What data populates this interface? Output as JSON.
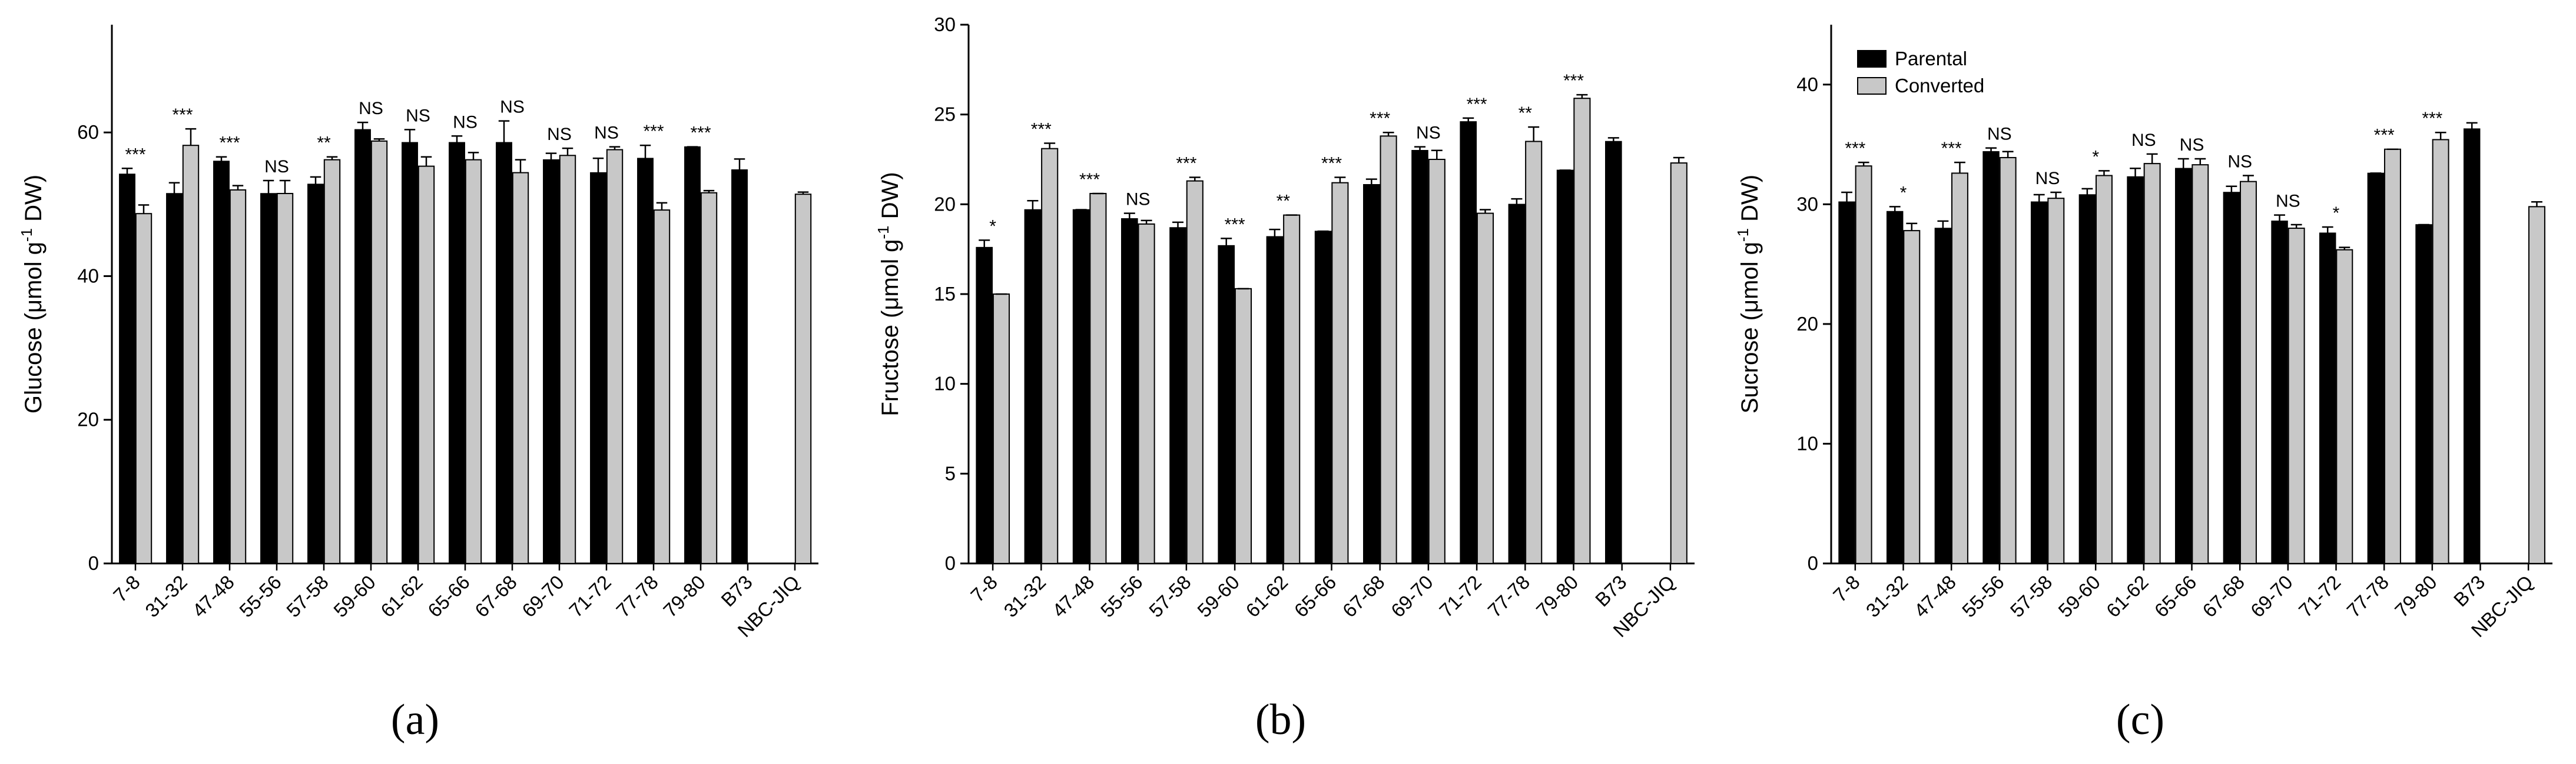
{
  "legend": {
    "items": [
      {
        "label": "Parental",
        "color": "#000000"
      },
      {
        "label": "Converted",
        "color": "#c8c8c8"
      }
    ]
  },
  "colors": {
    "parental": "#000000",
    "converted": "#c8c8c8",
    "axis": "#000000"
  },
  "chart_data": [
    {
      "type": "bar",
      "panel_label": "(a)",
      "ylabel": "Glucose (μmol g⁻¹ DW)",
      "ylabel_parts": {
        "main": "Glucose (",
        "mu": "μ",
        "unit": "mol g",
        "sup": "-1",
        "tail": " DW)"
      },
      "ylim": [
        0,
        75
      ],
      "yticks": [
        0,
        20,
        40,
        60
      ],
      "categories": [
        "7-8",
        "31-32",
        "47-48",
        "55-56",
        "57-58",
        "59-60",
        "61-62",
        "65-66",
        "67-68",
        "69-70",
        "71-72",
        "77-78",
        "79-80",
        "B73",
        "NBC-JIQ"
      ],
      "series": [
        {
          "name": "Parental",
          "values": [
            54.2,
            51.5,
            56.0,
            51.5,
            52.8,
            60.4,
            58.6,
            58.6,
            58.6,
            56.2,
            54.4,
            56.4,
            58.0,
            54.8,
            null
          ],
          "errors": [
            0.8,
            1.5,
            0.6,
            1.8,
            1.0,
            1.0,
            1.8,
            0.9,
            3.0,
            0.9,
            2.0,
            1.8,
            0.0,
            1.5,
            null
          ]
        },
        {
          "name": "Converted",
          "values": [
            48.7,
            58.2,
            52.0,
            51.5,
            56.2,
            58.8,
            55.3,
            56.2,
            54.4,
            56.8,
            57.6,
            49.2,
            51.6,
            null,
            51.4
          ],
          "errors": [
            1.2,
            2.3,
            0.6,
            1.8,
            0.4,
            0.3,
            1.3,
            1.0,
            1.8,
            1.0,
            0.4,
            1.0,
            0.3,
            null,
            0.3
          ]
        }
      ],
      "significance": [
        "***",
        "***",
        "***",
        "NS",
        "**",
        "NS",
        "NS",
        "NS",
        "NS",
        "NS",
        "NS",
        "***",
        "***",
        "",
        ""
      ]
    },
    {
      "type": "bar",
      "panel_label": "(b)",
      "ylabel": "Fructose (μmol g⁻¹ DW)",
      "ylabel_parts": {
        "main": "Fructose (",
        "mu": "μ",
        "unit": "mol g",
        "sup": "-1",
        "tail": " DW)"
      },
      "ylim": [
        0,
        30
      ],
      "yticks": [
        0,
        5,
        10,
        15,
        20,
        25,
        30
      ],
      "categories": [
        "7-8",
        "31-32",
        "47-48",
        "55-56",
        "57-58",
        "59-60",
        "61-62",
        "65-66",
        "67-68",
        "69-70",
        "71-72",
        "77-78",
        "79-80",
        "B73",
        "NBC-JIQ"
      ],
      "series": [
        {
          "name": "Parental",
          "values": [
            17.6,
            19.7,
            19.7,
            19.2,
            18.7,
            17.7,
            18.2,
            18.5,
            21.1,
            23.0,
            24.6,
            20.0,
            21.9,
            23.5,
            null
          ],
          "errors": [
            0.4,
            0.5,
            0.0,
            0.3,
            0.3,
            0.4,
            0.4,
            0.0,
            0.3,
            0.2,
            0.2,
            0.3,
            0.0,
            0.2,
            null
          ]
        },
        {
          "name": "Converted",
          "values": [
            15.0,
            23.1,
            20.6,
            18.9,
            21.3,
            15.3,
            19.4,
            21.2,
            23.8,
            22.5,
            19.5,
            23.5,
            25.9,
            null,
            22.3
          ],
          "errors": [
            0.0,
            0.3,
            0.0,
            0.2,
            0.2,
            0.0,
            0.0,
            0.3,
            0.2,
            0.5,
            0.2,
            0.8,
            0.2,
            null,
            0.3
          ]
        }
      ],
      "significance": [
        "*",
        "***",
        "***",
        "NS",
        "***",
        "***",
        "**",
        "***",
        "***",
        "NS",
        "***",
        "**",
        "***",
        "",
        ""
      ]
    },
    {
      "type": "bar",
      "panel_label": "(c)",
      "ylabel": "Sucrose (μmol g⁻¹ DW)",
      "ylabel_parts": {
        "main": "Sucrose (",
        "mu": "μ",
        "unit": "mol g",
        "sup": "-1",
        "tail": " DW)"
      },
      "ylim": [
        0,
        45
      ],
      "yticks": [
        0,
        10,
        20,
        30,
        40
      ],
      "categories": [
        "7-8",
        "31-32",
        "47-48",
        "55-56",
        "57-58",
        "59-60",
        "61-62",
        "65-66",
        "67-68",
        "69-70",
        "71-72",
        "77-78",
        "79-80",
        "B73",
        "NBC-JIQ"
      ],
      "series": [
        {
          "name": "Parental",
          "values": [
            30.2,
            29.4,
            28.0,
            34.4,
            30.2,
            30.8,
            32.3,
            33.0,
            31.0,
            28.6,
            27.6,
            32.6,
            28.3,
            36.3,
            null
          ],
          "errors": [
            0.8,
            0.4,
            0.6,
            0.3,
            0.6,
            0.5,
            0.7,
            0.8,
            0.5,
            0.5,
            0.5,
            0.0,
            0.0,
            0.5,
            null
          ]
        },
        {
          "name": "Converted",
          "values": [
            33.2,
            27.8,
            32.6,
            33.9,
            30.5,
            32.4,
            33.4,
            33.3,
            31.9,
            28.0,
            26.2,
            34.6,
            35.4,
            null,
            29.8
          ],
          "errors": [
            0.3,
            0.6,
            0.9,
            0.5,
            0.5,
            0.4,
            0.8,
            0.5,
            0.5,
            0.3,
            0.2,
            0.0,
            0.6,
            null,
            0.4
          ]
        }
      ],
      "significance": [
        "***",
        "*",
        "***",
        "NS",
        "NS",
        "*",
        "NS",
        "NS",
        "NS",
        "NS",
        "*",
        "***",
        "***",
        "",
        ""
      ]
    }
  ]
}
